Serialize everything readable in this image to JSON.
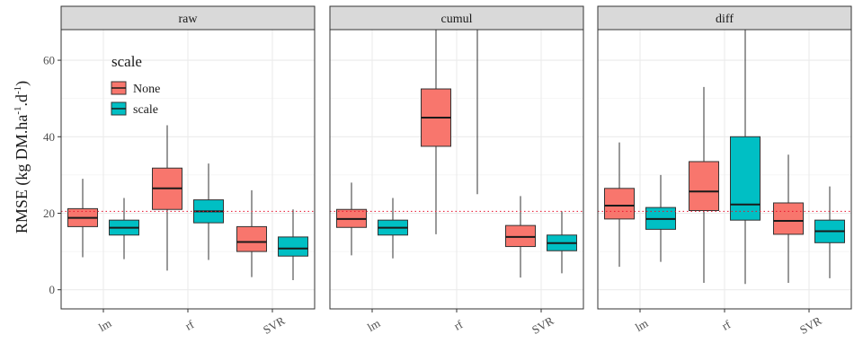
{
  "chart_data": {
    "type": "boxplot",
    "ylabel_main": "RMSE (kg DM.ha",
    "ylabel_sup1": "-1",
    "ylabel_mid": ".d",
    "ylabel_sup2": "-1",
    "ylabel_end": ")",
    "ylim": [
      -5,
      68
    ],
    "yticks": [
      0,
      20,
      40,
      60
    ],
    "reference_line": 20.5,
    "categories": [
      "lm",
      "rf",
      "SVR"
    ],
    "legend": {
      "title": "scale",
      "entries": [
        {
          "label": "None",
          "color": "#F8766D"
        },
        {
          "label": "scale",
          "color": "#00BFC4"
        }
      ]
    },
    "panels": [
      {
        "title": "raw",
        "boxes": [
          {
            "category": "lm",
            "series": "None",
            "min": 8.5,
            "q1": 16.5,
            "median": 18.8,
            "q3": 21.2,
            "max": 29
          },
          {
            "category": "lm",
            "series": "scale",
            "min": 8,
            "q1": 14.3,
            "median": 16.2,
            "q3": 18.2,
            "max": 24
          },
          {
            "category": "rf",
            "series": "None",
            "min": 5,
            "q1": 21,
            "median": 26.5,
            "q3": 31.8,
            "max": 43
          },
          {
            "category": "rf",
            "series": "scale",
            "min": 7.8,
            "q1": 17.5,
            "median": 20.5,
            "q3": 23.5,
            "max": 33
          },
          {
            "category": "SVR",
            "series": "None",
            "min": 3.3,
            "q1": 10,
            "median": 12.5,
            "q3": 16.5,
            "max": 26
          },
          {
            "category": "SVR",
            "series": "scale",
            "min": 2.5,
            "q1": 8.8,
            "median": 10.8,
            "q3": 13.8,
            "max": 21
          }
        ]
      },
      {
        "title": "cumul",
        "boxes": [
          {
            "category": "lm",
            "series": "None",
            "min": 9,
            "q1": 16.3,
            "median": 18.5,
            "q3": 21,
            "max": 28
          },
          {
            "category": "lm",
            "series": "scale",
            "min": 8.2,
            "q1": 14.3,
            "median": 16.2,
            "q3": 18.2,
            "max": 24
          },
          {
            "category": "rf",
            "series": "None",
            "min": 14.5,
            "q1": 37.5,
            "median": 45,
            "q3": 52.5,
            "max": 68
          },
          {
            "category": "rf",
            "series": "scale",
            "min": 25,
            "q1": 68,
            "median": 68,
            "q3": 68,
            "max": 68
          },
          {
            "category": "SVR",
            "series": "None",
            "min": 3.2,
            "q1": 11.3,
            "median": 13.8,
            "q3": 16.8,
            "max": 24.5
          },
          {
            "category": "SVR",
            "series": "scale",
            "min": 4.3,
            "q1": 10.2,
            "median": 12.2,
            "q3": 14.3,
            "max": 20.5
          }
        ]
      },
      {
        "title": "diff",
        "boxes": [
          {
            "category": "lm",
            "series": "None",
            "min": 6,
            "q1": 18.5,
            "median": 22,
            "q3": 26.5,
            "max": 38.5
          },
          {
            "category": "lm",
            "series": "scale",
            "min": 7.3,
            "q1": 15.8,
            "median": 18.5,
            "q3": 21.5,
            "max": 30
          },
          {
            "category": "rf",
            "series": "None",
            "min": 1.8,
            "q1": 20.7,
            "median": 25.7,
            "q3": 33.5,
            "max": 53
          },
          {
            "category": "rf",
            "series": "scale",
            "min": 1.5,
            "q1": 18.2,
            "median": 22.3,
            "q3": 40,
            "max": 68
          },
          {
            "category": "SVR",
            "series": "None",
            "min": 1.8,
            "q1": 14.5,
            "median": 18,
            "q3": 22.7,
            "max": 35.3
          },
          {
            "category": "SVR",
            "series": "scale",
            "min": 3,
            "q1": 12.3,
            "median": 15.3,
            "q3": 18.2,
            "max": 27
          }
        ]
      }
    ]
  }
}
